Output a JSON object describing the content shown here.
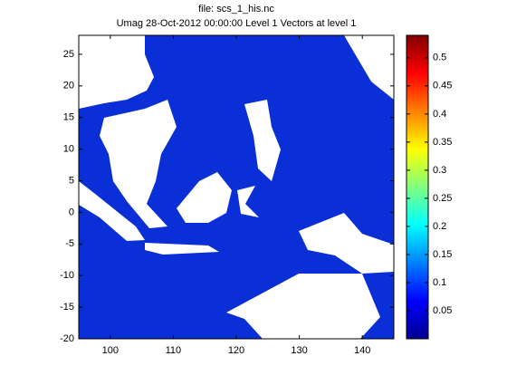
{
  "chart_data": {
    "type": "map",
    "title": "file: scs_1_his.nc",
    "subtitle": "Umag 28-Oct-2012 00:00:00  Level 1  Vectors at level 1",
    "xlim": [
      95,
      145
    ],
    "xticks": [
      100,
      110,
      120,
      130,
      140
    ],
    "ylim": [
      -20,
      28
    ],
    "yticks": [
      -20,
      -15,
      -10,
      -5,
      0,
      5,
      10,
      15,
      20,
      25
    ],
    "colorbar": {
      "clim": [
        0,
        0.54
      ],
      "ticks": [
        0.05,
        0.1,
        0.15,
        0.2,
        0.25,
        0.3,
        0.35,
        0.4,
        0.45,
        0.5
      ]
    }
  }
}
